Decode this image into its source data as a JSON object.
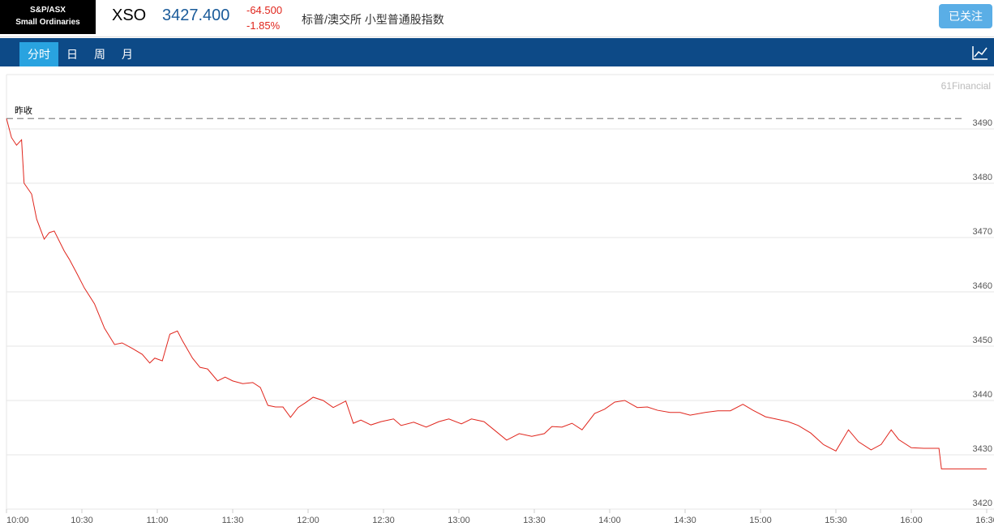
{
  "header": {
    "logo": [
      "S&P/ASX",
      "Small Ordinaries"
    ],
    "symbol": "XSO",
    "price": "3427.400",
    "change": "-64.500",
    "change_pct": "-1.85%",
    "name": "标普/澳交所 小型普通股指数",
    "follow_button": "已关注"
  },
  "tabs": [
    "分时",
    "日",
    "周",
    "月"
  ],
  "watermark": "61Financial",
  "chart_data": {
    "type": "line",
    "color": "#e0251c",
    "grid": true,
    "reference": {
      "label": "昨收",
      "value": 3491.9
    },
    "x": [
      "10:00",
      "10:02",
      "10:04",
      "10:06",
      "10:07",
      "10:10",
      "10:12",
      "10:15",
      "10:17",
      "10:19",
      "10:23",
      "10:25",
      "10:28",
      "10:31",
      "10:35",
      "10:39",
      "10:43",
      "10:46",
      "10:50",
      "10:54",
      "10:57",
      "10:59",
      "11:02",
      "11:05",
      "11:08",
      "11:10",
      "11:14",
      "11:17",
      "11:20",
      "11:24",
      "11:27",
      "11:30",
      "11:34",
      "11:38",
      "11:41",
      "11:44",
      "11:47",
      "11:50",
      "11:53",
      "11:56",
      "11:59",
      "12:02",
      "12:06",
      "12:10",
      "12:15",
      "12:18",
      "12:21",
      "12:25",
      "12:29",
      "12:34",
      "12:37",
      "12:42",
      "12:47",
      "12:52",
      "12:56",
      "13:01",
      "13:05",
      "13:10",
      "13:14",
      "13:19",
      "13:24",
      "13:29",
      "13:34",
      "13:37",
      "13:41",
      "13:45",
      "13:49",
      "13:54",
      "13:58",
      "14:02",
      "14:06",
      "14:11",
      "14:15",
      "14:19",
      "14:24",
      "14:28",
      "14:32",
      "14:38",
      "14:43",
      "14:48",
      "14:53",
      "14:57",
      "15:02",
      "15:06",
      "15:11",
      "15:15",
      "15:20",
      "15:25",
      "15:30",
      "15:35",
      "15:39",
      "15:44",
      "15:48",
      "15:52",
      "15:55",
      "16:00",
      "16:05",
      "16:11",
      "16:12",
      "16:30"
    ],
    "values": [
      3491.9,
      3488.4,
      3487,
      3488,
      3480,
      3478,
      3473.4,
      3469.7,
      3470.9,
      3471.2,
      3467.5,
      3466,
      3463.4,
      3460.7,
      3457.8,
      3453.3,
      3450.3,
      3450.6,
      3449.6,
      3448.5,
      3446.9,
      3447.8,
      3447.3,
      3452.2,
      3452.8,
      3451,
      3447.8,
      3446.1,
      3445.8,
      3443.6,
      3444.3,
      3443.6,
      3443.1,
      3443.3,
      3442.4,
      3439.1,
      3438.8,
      3438.8,
      3436.9,
      3438.7,
      3439.6,
      3440.6,
      3440,
      3438.7,
      3439.9,
      3435.8,
      3436.4,
      3435.5,
      3436.1,
      3436.6,
      3435.4,
      3436,
      3435.1,
      3436.1,
      3436.6,
      3435.7,
      3436.6,
      3436.1,
      3434.6,
      3432.7,
      3433.9,
      3433.4,
      3433.9,
      3435.2,
      3435.1,
      3435.8,
      3434.6,
      3437.6,
      3438.4,
      3439.7,
      3440,
      3438.7,
      3438.8,
      3438.2,
      3437.8,
      3437.8,
      3437.3,
      3437.8,
      3438.1,
      3438.1,
      3439.3,
      3438.2,
      3437,
      3436.6,
      3436.1,
      3435.4,
      3434,
      3431.9,
      3430.7,
      3434.6,
      3432.4,
      3430.9,
      3431.9,
      3434.6,
      3432.8,
      3431.3,
      3431.2,
      3431.2,
      3427.4,
      3427.4
    ],
    "xlim": [
      "10:00",
      "16:30"
    ],
    "xticks": [
      "10:00",
      "10:30",
      "11:00",
      "11:30",
      "12:00",
      "12:30",
      "13:00",
      "13:30",
      "14:00",
      "14:30",
      "15:00",
      "15:30",
      "16:00",
      "16:30"
    ],
    "ylim": [
      3420,
      3500
    ],
    "yticks": [
      3420,
      3430,
      3440,
      3450,
      3460,
      3470,
      3480,
      3490
    ]
  }
}
